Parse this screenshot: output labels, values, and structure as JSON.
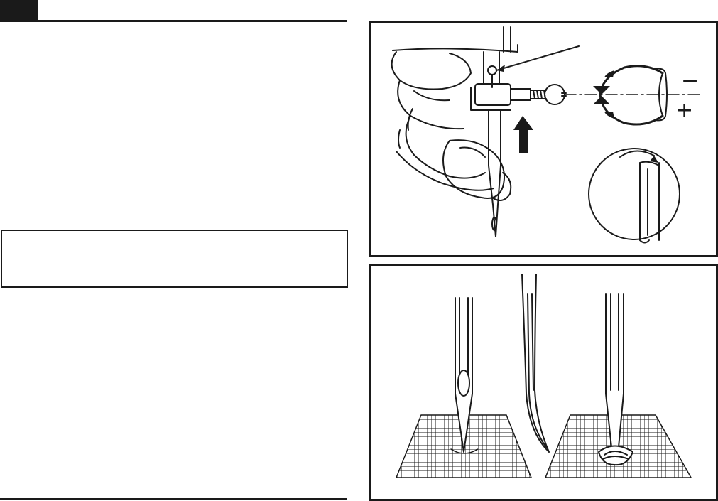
{
  "illustrations": {
    "needle_installation": {
      "adjust_direction_minus": "−",
      "adjust_direction_plus": "+",
      "icons": [
        "hand-holding-needle",
        "needle-clamp-screw",
        "push-up-arrow",
        "rotation-arrows",
        "needle-flat-side-detail"
      ]
    },
    "needle_damage": {
      "icons": [
        "needle-in-fabric-good",
        "bent-needle",
        "blunt-needle-in-fabric"
      ]
    }
  },
  "colors": {
    "ink": "#1a1a1a",
    "paper": "#ffffff"
  }
}
